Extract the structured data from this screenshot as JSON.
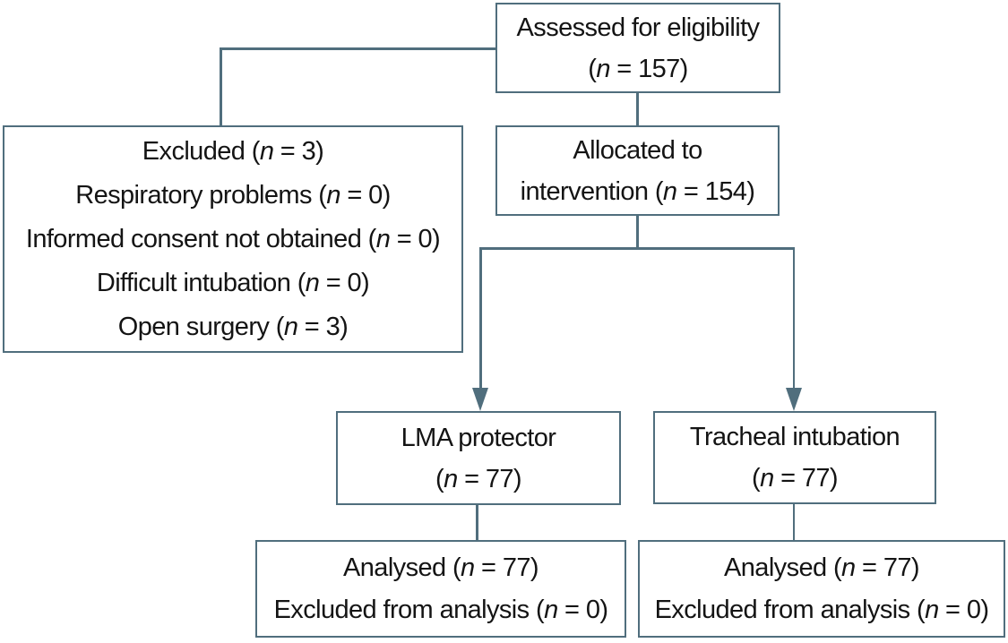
{
  "diagram": {
    "type": "consort-flow-diagram",
    "line_color": "#506e7d",
    "text_color": "#141414",
    "background": "#ffffff"
  },
  "boxes": {
    "assessed": {
      "lines": [
        {
          "pre": "Assessed for eligibility"
        },
        {
          "pre": "(",
          "var": "n",
          "post": " = 157)"
        }
      ]
    },
    "excluded": {
      "lines": [
        {
          "pre": "Excluded (",
          "var": "n",
          "post": " = 3)"
        },
        {
          "pre": "Respiratory problems (",
          "var": "n",
          "post": " = 0)"
        },
        {
          "pre": "Informed consent not obtained (",
          "var": "n",
          "post": " = 0)"
        },
        {
          "pre": "Difficult intubation (",
          "var": "n",
          "post": " = 0)"
        },
        {
          "pre": "Open surgery (",
          "var": "n",
          "post": " = 3)"
        }
      ]
    },
    "allocated": {
      "lines": [
        {
          "pre": "Allocated to"
        },
        {
          "pre": "intervention (",
          "var": "n",
          "post": " = 154)"
        }
      ]
    },
    "lma": {
      "lines": [
        {
          "pre": "LMA protector"
        },
        {
          "pre": "(",
          "var": "n",
          "post": " = 77)"
        }
      ]
    },
    "tracheal": {
      "lines": [
        {
          "pre": "Tracheal intubation"
        },
        {
          "pre": "(",
          "var": "n",
          "post": " = 77)"
        }
      ]
    },
    "analysed_lma": {
      "lines": [
        {
          "pre": "Analysed (",
          "var": "n",
          "post": " = 77)"
        },
        {
          "pre": "Excluded from analysis (",
          "var": "n",
          "post": " = 0)"
        }
      ]
    },
    "analysed_tracheal": {
      "lines": [
        {
          "pre": "Analysed (",
          "var": "n",
          "post": " = 77)"
        },
        {
          "pre": "Excluded from analysis (",
          "var": "n",
          "post": " = 0)"
        }
      ]
    }
  }
}
